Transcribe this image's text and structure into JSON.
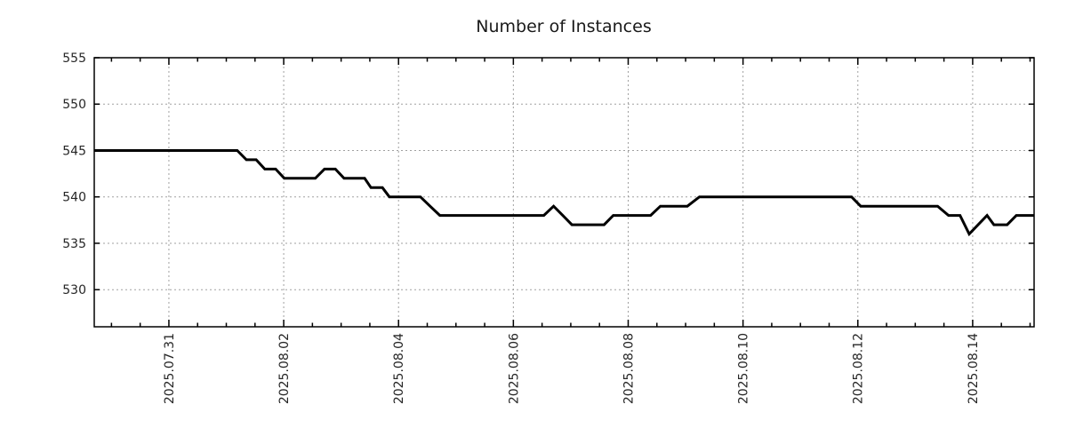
{
  "chart_data": {
    "type": "line",
    "title": "Number of Instances",
    "legend": "none",
    "x_axis": {
      "tick_labels": [
        "2025.07.31",
        "2025.08.02",
        "2025.08.04",
        "2025.08.06",
        "2025.08.08",
        "2025.08.10",
        "2025.08.12",
        "2025.08.14"
      ],
      "tick_positions_days": [
        2,
        4,
        6,
        8,
        10,
        12,
        14,
        16
      ],
      "minor_tick_step_days": 0.5,
      "range_days": [
        0.7,
        17.07
      ],
      "t_unit": "days since 2025-07-29 00:00",
      "grid": true
    },
    "y_axis": {
      "tick_labels": [
        "555",
        "550",
        "545",
        "540",
        "535",
        "530"
      ],
      "tick_values": [
        555,
        550,
        545,
        540,
        535,
        530
      ],
      "range": [
        526,
        555
      ],
      "grid": true
    },
    "series": [
      {
        "name": "Number of Instances",
        "color": "#000000",
        "points": [
          [
            0.7,
            545
          ],
          [
            3.19,
            545
          ],
          [
            3.35,
            544
          ],
          [
            3.52,
            544
          ],
          [
            3.67,
            543
          ],
          [
            3.86,
            543
          ],
          [
            4.01,
            542
          ],
          [
            4.55,
            542
          ],
          [
            4.71,
            543
          ],
          [
            4.9,
            543
          ],
          [
            5.05,
            542
          ],
          [
            5.41,
            542
          ],
          [
            5.52,
            541
          ],
          [
            5.72,
            541
          ],
          [
            5.84,
            540
          ],
          [
            6.38,
            540
          ],
          [
            6.55,
            539
          ],
          [
            6.72,
            538
          ],
          [
            8.53,
            538
          ],
          [
            8.7,
            539
          ],
          [
            8.86,
            538
          ],
          [
            9.02,
            537
          ],
          [
            9.58,
            537
          ],
          [
            9.74,
            538
          ],
          [
            10.39,
            538
          ],
          [
            10.56,
            539
          ],
          [
            11.03,
            539
          ],
          [
            11.24,
            540
          ],
          [
            13.89,
            540
          ],
          [
            14.05,
            539
          ],
          [
            15.39,
            539
          ],
          [
            15.58,
            538
          ],
          [
            15.78,
            538
          ],
          [
            15.94,
            536
          ],
          [
            16.25,
            538
          ],
          [
            16.37,
            537
          ],
          [
            16.6,
            537
          ],
          [
            16.76,
            538
          ],
          [
            17.07,
            538
          ]
        ]
      }
    ],
    "colors": {
      "line": "#000000",
      "grid": "#a0a0a0",
      "axis": "#000000",
      "text": "#262626",
      "background": "#ffffff"
    }
  }
}
